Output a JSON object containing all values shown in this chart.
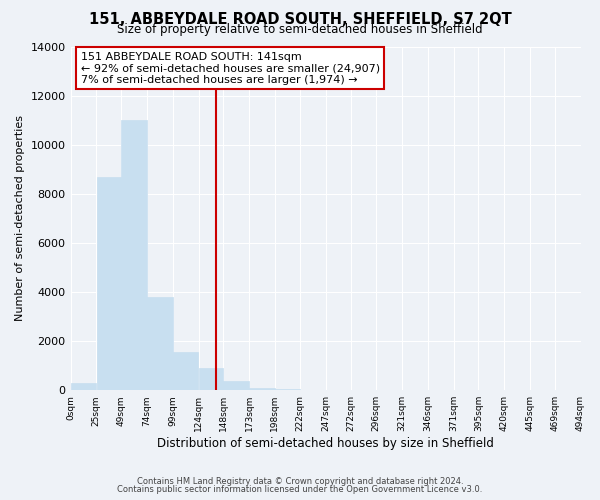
{
  "title": "151, ABBEYDALE ROAD SOUTH, SHEFFIELD, S7 2QT",
  "subtitle": "Size of property relative to semi-detached houses in Sheffield",
  "xlabel": "Distribution of semi-detached houses by size in Sheffield",
  "ylabel": "Number of semi-detached properties",
  "bar_left_edges": [
    0,
    25,
    49,
    74,
    99,
    124,
    148,
    173,
    198,
    222,
    247,
    272,
    296,
    321,
    346,
    371,
    395,
    420,
    445,
    469
  ],
  "bar_heights": [
    300,
    8700,
    11000,
    3800,
    1550,
    900,
    380,
    100,
    50,
    0,
    0,
    0,
    0,
    0,
    0,
    0,
    0,
    0,
    0,
    0
  ],
  "bar_widths": [
    25,
    24,
    25,
    25,
    25,
    24,
    25,
    25,
    24,
    25,
    25,
    24,
    25,
    25,
    25,
    24,
    25,
    25,
    24,
    25
  ],
  "tick_labels": [
    "0sqm",
    "25sqm",
    "49sqm",
    "74sqm",
    "99sqm",
    "124sqm",
    "148sqm",
    "173sqm",
    "198sqm",
    "222sqm",
    "247sqm",
    "272sqm",
    "296sqm",
    "321sqm",
    "346sqm",
    "371sqm",
    "395sqm",
    "420sqm",
    "445sqm",
    "469sqm",
    "494sqm"
  ],
  "tick_positions": [
    0,
    25,
    49,
    74,
    99,
    124,
    148,
    173,
    198,
    222,
    247,
    272,
    296,
    321,
    346,
    371,
    395,
    420,
    445,
    469,
    494
  ],
  "bar_color": "#c8dff0",
  "vline_x": 141,
  "vline_color": "#cc0000",
  "annotation_lines": [
    "151 ABBEYDALE ROAD SOUTH: 141sqm",
    "← 92% of semi-detached houses are smaller (24,907)",
    "7% of semi-detached houses are larger (1,974) →"
  ],
  "ylim": [
    0,
    14000
  ],
  "yticks": [
    0,
    2000,
    4000,
    6000,
    8000,
    10000,
    12000,
    14000
  ],
  "footnote1": "Contains HM Land Registry data © Crown copyright and database right 2024.",
  "footnote2": "Contains public sector information licensed under the Open Government Licence v3.0.",
  "bg_color": "#eef2f7",
  "grid_color": "#ffffff"
}
